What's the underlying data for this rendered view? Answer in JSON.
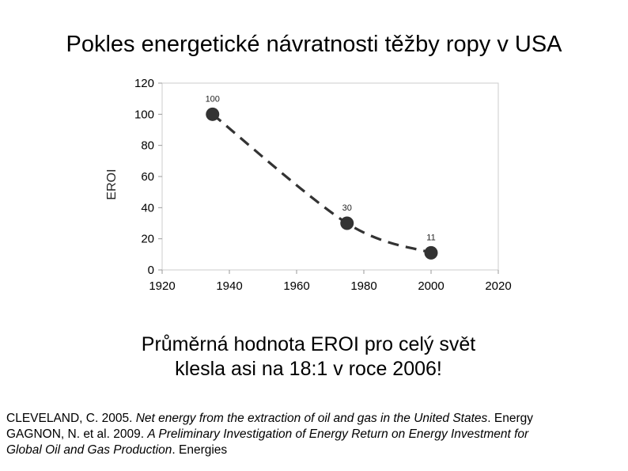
{
  "slide": {
    "title": "Pokles energetické návratnosti těžby ropy v USA",
    "note_line1": "Průměrná hodnota EROI pro celý svět",
    "note_line2": "klesla asi na 18:1 v roce 2006!",
    "references": [
      {
        "author": "CLEVELAND, C. 2005. ",
        "work": "Net energy from the extraction of oil and gas in the United States",
        "after": ". Energy"
      },
      {
        "author": "GAGNON, N. et al. 2009. ",
        "work": "A Preliminary Investigation of Energy Return on Energy Investment for",
        "after": ""
      },
      {
        "author": "",
        "work": "Global Oil and Gas Production",
        "after": ". Energies"
      }
    ]
  },
  "chart_data": {
    "type": "line",
    "title": "",
    "xlabel": "",
    "ylabel": "EROI",
    "xlim": [
      1920,
      2020
    ],
    "ylim": [
      0,
      120
    ],
    "x_ticks": [
      1920,
      1940,
      1960,
      1980,
      2000,
      2020
    ],
    "y_ticks": [
      0,
      20,
      40,
      60,
      80,
      100,
      120
    ],
    "grid": false,
    "series": [
      {
        "name": "EROI",
        "x": [
          1935,
          1975,
          2000
        ],
        "values": [
          100,
          30,
          11
        ],
        "labels": [
          "100",
          "30",
          "11"
        ]
      }
    ],
    "colors": {
      "marker": "#333333",
      "line": "#333333",
      "frame": "#cccccc"
    }
  }
}
